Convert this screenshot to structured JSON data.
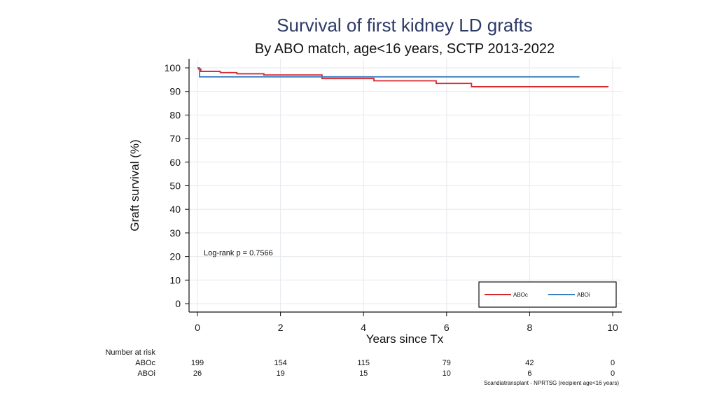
{
  "chart_data": {
    "type": "line",
    "title": "Survival of first kidney LD grafts",
    "subtitle": "By ABO match, age<16 years, SCTP 2013-2022",
    "xlabel": "Years since Tx",
    "ylabel": "Graft survival (%)",
    "xlim": [
      0,
      10
    ],
    "ylim": [
      0,
      100
    ],
    "xticks": [
      0,
      2,
      4,
      6,
      8,
      10
    ],
    "yticks": [
      0,
      10,
      20,
      30,
      40,
      50,
      60,
      70,
      80,
      90,
      100
    ],
    "grid": true,
    "legend_position": "bottom-right",
    "annotation": "Log-rank p = 0.7566",
    "series": [
      {
        "name": "ABOc",
        "color": "#d7262c",
        "x": [
          0,
          0.03,
          0.08,
          0.55,
          0.95,
          1.6,
          3.0,
          4.25,
          5.75,
          6.6,
          9.9
        ],
        "y": [
          100,
          99.5,
          98.5,
          98.0,
          97.5,
          97.0,
          95.5,
          94.5,
          93.4,
          92.0,
          92.0
        ]
      },
      {
        "name": "ABOi",
        "color": "#3a7fc1",
        "x": [
          0,
          0.05,
          9.2
        ],
        "y": [
          100,
          96.2,
          96.2
        ]
      }
    ],
    "risk_table": {
      "header": "Number at risk",
      "times": [
        0,
        2,
        4,
        6,
        8,
        10
      ],
      "rows": [
        {
          "name": "ABOc",
          "values": [
            "199",
            "154",
            "115",
            "79",
            "42",
            "0"
          ]
        },
        {
          "name": "ABOi",
          "values": [
            "26",
            "19",
            "15",
            "10",
            "6",
            "0"
          ]
        }
      ]
    },
    "footnote": "Scandiatransplant - NPRTSG (recipient age<16 years)"
  }
}
